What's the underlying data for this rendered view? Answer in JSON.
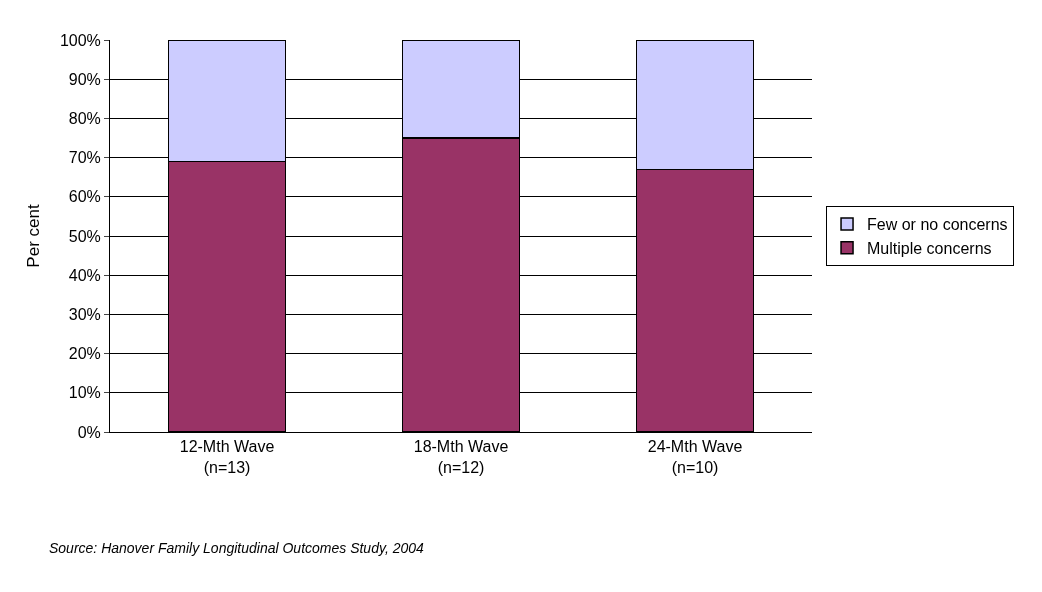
{
  "chart_data": {
    "type": "bar",
    "stacked": true,
    "categories": [
      "12-Mth Wave\n(n=13)",
      "18-Mth Wave\n(n=12)",
      "24-Mth Wave\n(n=10)"
    ],
    "series": [
      {
        "name": "Multiple concerns",
        "color": "#993366",
        "values": [
          69,
          75,
          67
        ]
      },
      {
        "name": "Few or no concerns",
        "color": "#ccccff",
        "values": [
          31,
          25,
          33
        ]
      }
    ],
    "ylabel": "Per cent",
    "ylim": [
      0,
      100
    ],
    "yticks": [
      {
        "value": 0,
        "label": "0%"
      },
      {
        "value": 10,
        "label": "10%"
      },
      {
        "value": 20,
        "label": "20%"
      },
      {
        "value": 30,
        "label": "30%"
      },
      {
        "value": 40,
        "label": "40%"
      },
      {
        "value": 50,
        "label": "50%"
      },
      {
        "value": 60,
        "label": "60%"
      },
      {
        "value": 70,
        "label": "70%"
      },
      {
        "value": 80,
        "label": "80%"
      },
      {
        "value": 90,
        "label": "90%"
      },
      {
        "value": 100,
        "label": "100%"
      }
    ],
    "grid": "y",
    "legend": "right",
    "annotations": [
      "Source: Hanover Family Longitudinal Outcomes Study, 2004"
    ]
  }
}
